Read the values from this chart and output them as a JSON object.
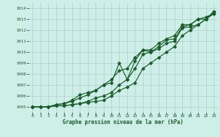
{
  "xlabel": "Graphe pression niveau de la mer (hPa)",
  "background_color": "#ceeee8",
  "grid_color": "#aacccc",
  "plot_bg": "#ceeee8",
  "line_color": "#1a5c2a",
  "xlim": [
    -0.5,
    23.5
  ],
  "ylim": [
    1004.5,
    1014.5
  ],
  "yticks": [
    1005,
    1006,
    1007,
    1008,
    1009,
    1010,
    1011,
    1012,
    1013,
    1014
  ],
  "xticks": [
    0,
    1,
    2,
    3,
    4,
    5,
    6,
    7,
    8,
    9,
    10,
    11,
    12,
    13,
    14,
    15,
    16,
    17,
    18,
    19,
    20,
    21,
    22,
    23
  ],
  "series": [
    [
      1005.0,
      1005.0,
      1005.0,
      1005.1,
      1005.1,
      1005.2,
      1005.3,
      1005.4,
      1005.5,
      1005.6,
      1006.0,
      1006.5,
      1006.8,
      1007.2,
      1008.5,
      1009.0,
      1009.5,
      1010.0,
      1010.5,
      1011.5,
      1012.0,
      1012.5,
      1013.0,
      1013.5
    ],
    [
      1005.0,
      1005.0,
      1005.0,
      1005.1,
      1005.1,
      1005.2,
      1005.3,
      1005.5,
      1005.8,
      1006.0,
      1006.3,
      1007.0,
      1007.5,
      1008.5,
      1009.8,
      1010.0,
      1010.3,
      1010.8,
      1011.0,
      1012.2,
      1012.3,
      1012.5,
      1013.0,
      1013.7
    ],
    [
      1005.0,
      1005.0,
      1005.0,
      1005.2,
      1005.3,
      1005.5,
      1005.8,
      1006.1,
      1006.5,
      1007.0,
      1007.5,
      1008.3,
      1008.5,
      1009.5,
      1010.2,
      1010.2,
      1010.8,
      1011.2,
      1011.5,
      1012.5,
      1012.5,
      1013.0,
      1013.2,
      1013.5
    ],
    [
      1005.0,
      1005.0,
      1005.0,
      1005.2,
      1005.3,
      1005.6,
      1006.1,
      1006.3,
      1006.5,
      1007.0,
      1007.2,
      1009.0,
      1007.5,
      1009.2,
      1010.2,
      1010.0,
      1010.5,
      1011.1,
      1011.2,
      1012.3,
      1012.5,
      1013.0,
      1013.0,
      1013.7
    ]
  ],
  "marker": "D",
  "markersize": 2.5,
  "linewidth": 0.9
}
